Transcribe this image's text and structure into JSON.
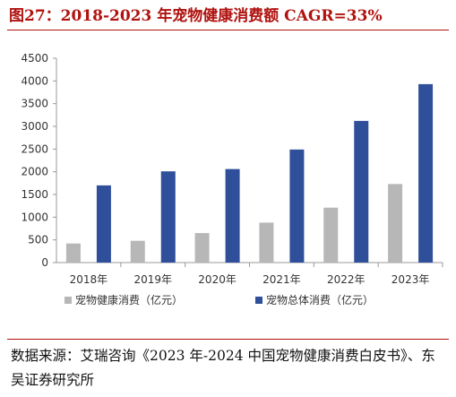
{
  "figure": {
    "title": "图27：2018-2023 年宠物健康消费额 CAGR=33%",
    "source": "数据来源：艾瑞咨询《2023 年-2024 中国宠物健康消费白皮书》、东吴证券研究所"
  },
  "colors": {
    "title": "#b0120e",
    "series_health": "#b7b7b7",
    "series_total": "#2f4f9a",
    "axis": "#999999"
  },
  "chart_data": {
    "type": "bar",
    "title": "",
    "xlabel": "",
    "ylabel": "",
    "categories": [
      "2018年",
      "2019年",
      "2020年",
      "2021年",
      "2022年",
      "2023年"
    ],
    "series": [
      {
        "name": "宠物健康消费（亿元）",
        "values": [
          420,
          480,
          650,
          880,
          1210,
          1730
        ]
      },
      {
        "name": "宠物总体消费（亿元）",
        "values": [
          1700,
          2010,
          2060,
          2490,
          3120,
          3930
        ]
      }
    ],
    "ylim": [
      0,
      4500
    ],
    "yticks": [
      "0",
      "500",
      "1000",
      "1500",
      "2000",
      "2500",
      "3000",
      "3500",
      "4000",
      "4500"
    ],
    "grid": false,
    "legend": "bottom"
  }
}
